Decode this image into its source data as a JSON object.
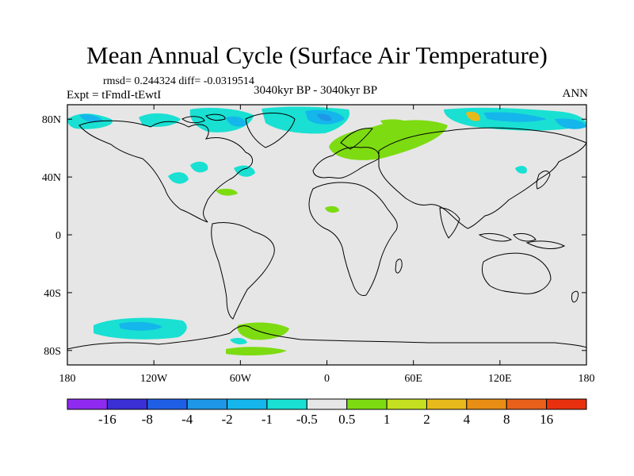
{
  "title": "Mean Annual Cycle (Surface Air Temperature)",
  "stats": "rmsd= 0.244324 diff= -0.0319514",
  "expt": "Expt = tFmdI-tEwtI",
  "center_label": "3040kyr BP - 3040kyr BP",
  "season": "ANN",
  "map": {
    "lon_ticks": [
      "180",
      "120W",
      "60W",
      "0",
      "60E",
      "120E",
      "180"
    ],
    "lat_ticks": [
      "80N",
      "40N",
      "0",
      "40S",
      "80S"
    ],
    "lat_tick_values": [
      80,
      40,
      0,
      -40,
      -80
    ],
    "lat_range": [
      -90,
      90
    ],
    "ocean_color": "#e6e6e6",
    "coast_color": "#000000"
  },
  "colorbar": {
    "colors": [
      "#8f2af0",
      "#3b2fd6",
      "#1e5fe6",
      "#1d97e6",
      "#14b6ec",
      "#19e0d2",
      "#e6e6e6",
      "#7ddb12",
      "#c4e020",
      "#e8b91c",
      "#e88e14",
      "#e8601a",
      "#e8300e"
    ],
    "labels": [
      "-16",
      "-8",
      "-4",
      "-2",
      "-1",
      "-0.5",
      "0.5",
      "1",
      "2",
      "4",
      "8",
      "16"
    ]
  }
}
